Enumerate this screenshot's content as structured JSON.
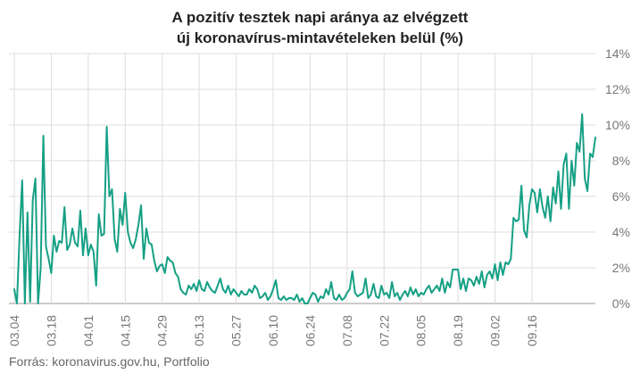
{
  "title_line1": "A pozitív tesztek napi aránya az elvégzett",
  "title_line2": "új koronavírus-mintavételeken belül (%)",
  "source": "Forrás: koronavirus.gov.hu, Portfolio",
  "colors": {
    "line": "#16a085",
    "grid": "#dddddd",
    "axis_text": "#777777",
    "zero_line": "#999999"
  },
  "chart_data": {
    "type": "line",
    "title": "A pozitív tesztek napi aránya az elvégzett új koronavírus-mintavételeken belül (%)",
    "xlabel": "",
    "ylabel": "",
    "ylim": [
      0,
      14
    ],
    "y_axis_position": "right",
    "y_ticks": [
      0,
      2,
      4,
      6,
      8,
      10,
      12,
      14
    ],
    "y_tick_labels": [
      "0%",
      "2%",
      "4%",
      "6%",
      "8%",
      "10%",
      "12%",
      "14%"
    ],
    "x_ticks": [
      "03.04",
      "03.18",
      "04.01",
      "04.15",
      "04.29",
      "05.13",
      "05.27",
      "06.10",
      "06.24",
      "07.08",
      "07.22",
      "08.05",
      "08.19",
      "09.02",
      "09.16"
    ],
    "x_tick_day_index": [
      0,
      14,
      28,
      42,
      56,
      70,
      84,
      98,
      112,
      126,
      140,
      154,
      168,
      182,
      196
    ],
    "grid": true,
    "legend": "none",
    "series": [
      {
        "values": [
          0.8,
          0.0,
          3.8,
          6.9,
          0.0,
          5.1,
          0.1,
          5.8,
          7.0,
          0.0,
          2.0,
          9.4,
          3.2,
          2.5,
          1.7,
          3.8,
          2.9,
          3.5,
          3.4,
          5.4,
          3.0,
          3.3,
          4.2,
          3.4,
          3.2,
          5.2,
          2.7,
          4.2,
          2.7,
          3.3,
          2.9,
          1.0,
          5.0,
          3.8,
          3.9,
          9.9,
          6.0,
          6.4,
          3.6,
          2.9,
          5.3,
          4.4,
          6.2,
          4.0,
          3.4,
          3.1,
          3.6,
          4.4,
          5.5,
          2.5,
          4.2,
          3.4,
          3.3,
          2.4,
          1.8,
          2.1,
          2.2,
          1.7,
          2.6,
          2.4,
          2.3,
          1.7,
          1.5,
          0.8,
          0.6,
          0.5,
          1.0,
          0.8,
          1.1,
          0.7,
          1.3,
          0.8,
          0.7,
          1.2,
          0.9,
          0.7,
          0.6,
          1.0,
          1.4,
          0.8,
          0.6,
          1.0,
          0.5,
          0.8,
          0.6,
          0.4,
          0.7,
          0.5,
          0.5,
          0.8,
          0.6,
          1.0,
          0.8,
          0.3,
          0.4,
          0.6,
          0.2,
          0.4,
          0.8,
          1.3,
          0.3,
          0.2,
          0.4,
          0.2,
          0.3,
          0.3,
          0.2,
          0.5,
          0.1,
          0.3,
          0.0,
          0.0,
          0.3,
          0.6,
          0.5,
          0.1,
          0.4,
          0.3,
          0.8,
          0.5,
          1.2,
          0.3,
          0.2,
          0.5,
          0.2,
          0.3,
          0.6,
          0.8,
          1.8,
          0.6,
          0.4,
          0.5,
          0.6,
          1.4,
          0.3,
          0.5,
          1.1,
          0.4,
          0.3,
          1.0,
          0.5,
          0.6,
          0.3,
          1.2,
          0.4,
          0.6,
          0.2,
          0.5,
          0.7,
          0.4,
          0.9,
          0.5,
          0.8,
          0.4,
          0.6,
          0.5,
          0.8,
          1.0,
          0.6,
          0.8,
          1.0,
          0.7,
          1.4,
          0.6,
          1.2,
          0.9,
          1.9,
          1.9,
          1.9,
          0.8,
          1.4,
          0.7,
          1.4,
          1.3,
          1.0,
          1.5,
          1.1,
          1.8,
          0.9,
          1.6,
          1.8,
          1.4,
          2.2,
          1.3,
          2.3,
          1.6,
          2.3,
          2.2,
          2.5,
          4.8,
          4.6,
          4.7,
          6.6,
          4.1,
          3.7,
          5.5,
          6.4,
          6.2,
          5.1,
          6.4,
          5.4,
          4.8,
          6.0,
          4.6,
          6.5,
          5.6,
          7.4,
          5.3,
          7.8,
          8.4,
          5.3,
          8.0,
          6.6,
          9.0,
          8.5,
          10.6,
          7.0,
          6.3,
          8.4,
          8.2,
          9.3
        ]
      }
    ]
  }
}
